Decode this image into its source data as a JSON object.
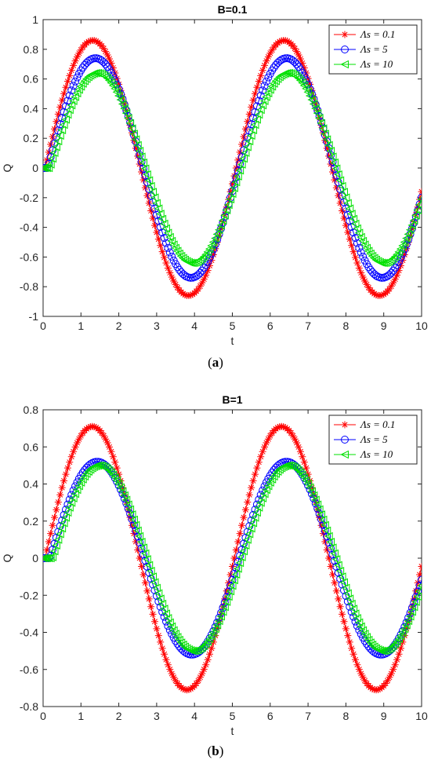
{
  "captions": {
    "a_open": "(",
    "a_letter": "a",
    "a_close": ")",
    "b_open": "(",
    "b_letter": "b",
    "b_close": ")"
  },
  "chart_data": [
    {
      "type": "scatter",
      "title": "B=0.1",
      "xlabel": "t",
      "ylabel": "Q",
      "xlim": [
        0,
        10
      ],
      "ylim": [
        -1,
        1
      ],
      "xticks": [
        "0",
        "1",
        "2",
        "3",
        "4",
        "5",
        "6",
        "7",
        "8",
        "9",
        "10"
      ],
      "yticks": [
        "1",
        "0.8",
        "0.6",
        "0.4",
        "0.2",
        "0",
        "-0.2",
        "-0.4",
        "-0.6",
        "-0.8",
        "-1"
      ],
      "legend_position": "top-right",
      "series": [
        {
          "name": "Λs = 0.1",
          "color": "#ff0000",
          "marker": "asterisk",
          "amplitude": 0.86,
          "period": 5.05,
          "phase_lag": 0.05
        },
        {
          "name": "Λs = 5",
          "color": "#0000ff",
          "marker": "circle",
          "amplitude": 0.74,
          "period": 5.05,
          "phase_lag": 0.12
        },
        {
          "name": "Λs = 10",
          "color": "#00e000",
          "marker": "triangle-left",
          "amplitude": 0.64,
          "period": 5.05,
          "phase_lag": 0.17
        }
      ]
    },
    {
      "type": "scatter",
      "title": "B=1",
      "xlabel": "t",
      "ylabel": "Q",
      "xlim": [
        0,
        10
      ],
      "ylim": [
        -0.8,
        0.8
      ],
      "xticks": [
        "0",
        "1",
        "2",
        "3",
        "4",
        "5",
        "6",
        "7",
        "8",
        "9",
        "10"
      ],
      "yticks": [
        "0.8",
        "0.6",
        "0.4",
        "0.2",
        "0",
        "-0.2",
        "-0.4",
        "-0.6",
        "-0.8"
      ],
      "legend_position": "top-right",
      "series": [
        {
          "name": "Λs = 0.1",
          "color": "#ff0000",
          "marker": "asterisk",
          "amplitude": 0.71,
          "period": 5.0,
          "phase_lag": 0.05
        },
        {
          "name": "Λs = 5",
          "color": "#0000ff",
          "marker": "circle",
          "amplitude": 0.52,
          "period": 5.0,
          "phase_lag": 0.18
        },
        {
          "name": "Λs = 10",
          "color": "#00e000",
          "marker": "triangle-left",
          "amplitude": 0.5,
          "period": 5.0,
          "phase_lag": 0.24
        }
      ]
    }
  ]
}
